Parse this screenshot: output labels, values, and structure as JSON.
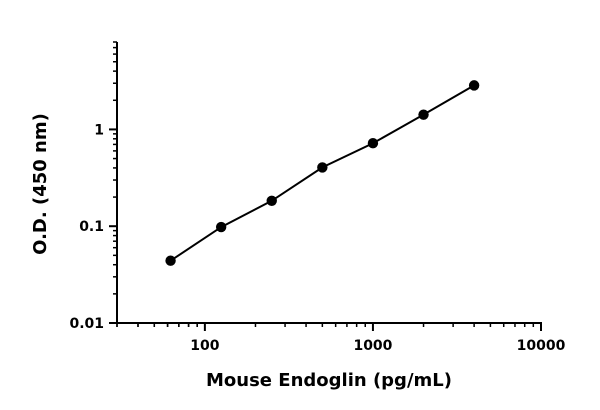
{
  "chart_data": {
    "type": "scatter",
    "title": "",
    "xlabel": "Mouse Endoglin (pg/mL)",
    "ylabel": "O.D. (450 nm)",
    "x_scale": "log",
    "y_scale": "log",
    "xlim": [
      30,
      10000
    ],
    "ylim": [
      0.01,
      8
    ],
    "x_ticks": [
      {
        "value": 100,
        "label": "100"
      },
      {
        "value": 1000,
        "label": "1000"
      },
      {
        "value": 10000,
        "label": "10000"
      }
    ],
    "y_ticks": [
      {
        "value": 0.01,
        "label": "0.01"
      },
      {
        "value": 0.1,
        "label": "0.1"
      },
      {
        "value": 1,
        "label": "1"
      }
    ],
    "grid": false,
    "legend": "none",
    "series": [
      {
        "x": [
          62.5,
          125,
          250,
          500,
          1000,
          2000,
          4000
        ],
        "y": [
          0.044,
          0.098,
          0.183,
          0.405,
          0.72,
          1.42,
          2.85
        ],
        "markers": true,
        "fit_line": true
      }
    ],
    "colors": {
      "marker": "#000000",
      "line": "#000000",
      "axis": "#000000"
    }
  }
}
